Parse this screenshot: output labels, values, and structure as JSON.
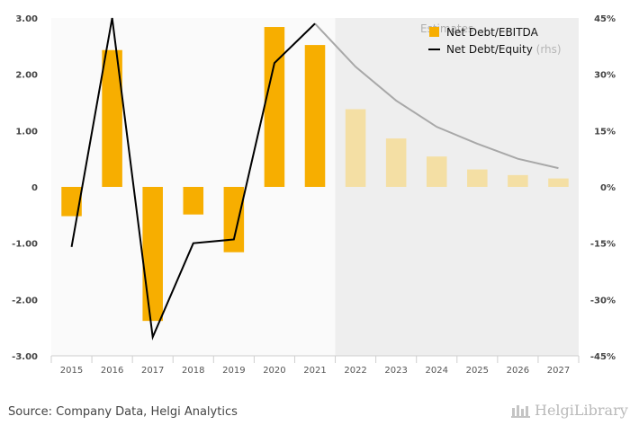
{
  "chart_data": {
    "type": "bar",
    "categories": [
      "2015",
      "2016",
      "2017",
      "2018",
      "2019",
      "2020",
      "2021",
      "2022",
      "2023",
      "2024",
      "2025",
      "2026",
      "2027"
    ],
    "series": [
      {
        "name": "Net Debt/EBITDA",
        "type": "bar",
        "axis": "left",
        "values": [
          -0.52,
          2.43,
          -2.38,
          -0.49,
          -1.16,
          2.84,
          2.52,
          1.38,
          0.86,
          0.54,
          0.31,
          0.21,
          0.15
        ]
      },
      {
        "name": "Net Debt/Equity",
        "type": "line",
        "axis": "right",
        "values": [
          -16.0,
          45.0,
          -40.0,
          -15.0,
          -14.0,
          33.0,
          43.5,
          32.0,
          23.0,
          16.0,
          11.5,
          7.5,
          5.0
        ]
      }
    ],
    "estimates_start": "2022",
    "estimates_label": "Estimates",
    "legend": {
      "bar_label": "Net Debt/EBITDA",
      "line_label": "Net Debt/Equity",
      "line_suffix": "(rhs)"
    },
    "y_left": {
      "ticks": [
        "3.00",
        "2.00",
        "1.00",
        "0",
        "-1.00",
        "-2.00",
        "-3.00"
      ],
      "range": [
        -3,
        3
      ]
    },
    "y_right": {
      "ticks": [
        "45%",
        "30%",
        "15%",
        "0%",
        "-15%",
        "-30%",
        "-45%"
      ],
      "range": [
        -45,
        45
      ]
    },
    "colors": {
      "bar_actual": "#f7ae00",
      "bar_estimate": "#f4dfa4",
      "line_actual": "#000000",
      "line_estimate": "#a8a8a8",
      "estimate_bg": "#eeeeee",
      "plot_bg": "#fafafa"
    }
  },
  "footer": {
    "source": "Source: Company Data, Helgi Analytics",
    "logo_text": "HelgiLibrary"
  }
}
